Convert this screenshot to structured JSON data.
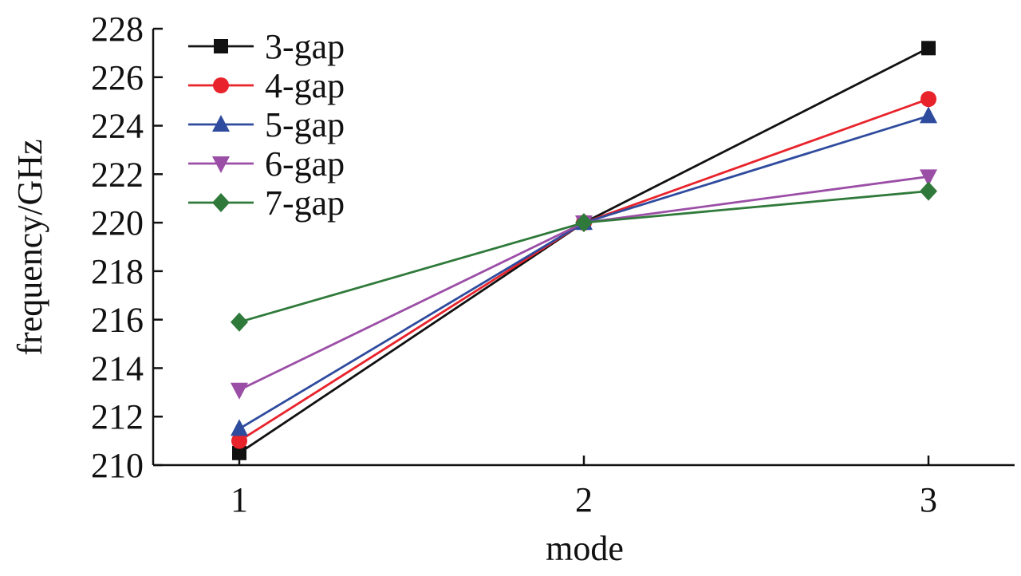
{
  "chart_data": {
    "type": "line",
    "xlabel": "mode",
    "ylabel": "frequency/GHz",
    "x": [
      1,
      2,
      3
    ],
    "xlim": [
      0.75,
      3.25
    ],
    "ylim": [
      210,
      228
    ],
    "yticks": [
      210,
      212,
      214,
      216,
      218,
      220,
      222,
      224,
      226,
      228
    ],
    "xticks": [
      1,
      2,
      3
    ],
    "grid": false,
    "legend": "top-left",
    "series": [
      {
        "name": "3-gap",
        "values": [
          210.5,
          220.0,
          227.2
        ],
        "color": "#111111",
        "marker": "square"
      },
      {
        "name": "4-gap",
        "values": [
          211.0,
          220.0,
          225.1
        ],
        "color": "#e8232b",
        "marker": "circle"
      },
      {
        "name": "5-gap",
        "values": [
          211.5,
          220.0,
          224.4
        ],
        "color": "#2e4b9e",
        "marker": "triangle-up"
      },
      {
        "name": "6-gap",
        "values": [
          213.1,
          220.0,
          221.9
        ],
        "color": "#9b4ea6",
        "marker": "triangle-down"
      },
      {
        "name": "7-gap",
        "values": [
          215.9,
          220.0,
          221.3
        ],
        "color": "#2f7a3a",
        "marker": "diamond"
      }
    ]
  }
}
